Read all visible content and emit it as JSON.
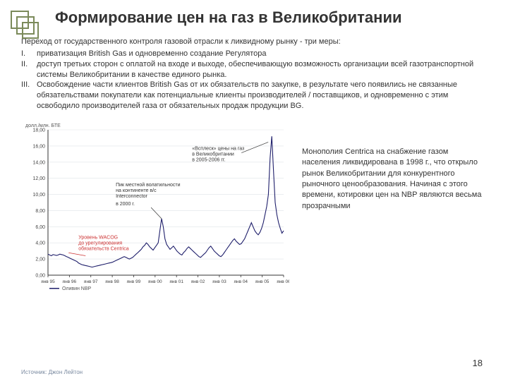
{
  "title": "Формирование цен на газ в Великобритании",
  "lead": "Переход от государственного контроля газовой отрасли к ликвидному рынку - три меры:",
  "items": [
    {
      "num": "I.",
      "text": "приватизация British Gas и одновременно создание Регулятора"
    },
    {
      "num": "II.",
      "text": "доступ третьих сторон с оплатой на входе и выходе, обеспечивающую возможность организации всей газотранспортной системы Великобритании в качестве единого рынка."
    },
    {
      "num": "III.",
      "text": "Освобождение части клиентов British Gas от их обязательств по закупке, в результате чего появились не связанные обязательствами покупатели как потенциальные клиенты производителей / поставщиков, и одновременно с этим освободило производителей газа от обязательных продаж продукции BG."
    }
  ],
  "sideText": "Монополия Centrica на снабжение газом населения ликвидирована в 1998 г., что открыло рынок Великобритании для конкурентного рыночного ценообразования. Начиная с этого времени, котировки цен на NBP являются весьма прозрачными",
  "pageNum": "18",
  "source": "Источник: Джон Лейтон",
  "chart": {
    "yAxisLabel": "долл./млн. БТЕ",
    "ylim": [
      0,
      18
    ],
    "ytick_step": 2,
    "yticks": [
      "0,00",
      "2,00",
      "4,00",
      "6,00",
      "8,00",
      "10,00",
      "12,00",
      "14,00",
      "16,00",
      "18,00"
    ],
    "xticks": [
      "янв 95",
      "янв 96",
      "янв 97",
      "янв 98",
      "янв 99",
      "янв 00",
      "янв 01",
      "янв 02",
      "янв 03",
      "янв 04",
      "янв 05",
      "янв 06"
    ],
    "legend": "Оливин NBP",
    "line_color": "#1f1f6b",
    "line_width": 1.1,
    "grid_color": "#dfe3e8",
    "ann_red": "Уровень WACOG до урегулирования обязательств Centrica",
    "ann_d1": "Пик местной волатильности на континенте в/с Interconnector",
    "ann_d1_sub": "в 2000 г.",
    "ann_d2": "«Всплеск» цены на газ в Великобритании в 2005-2006 гг.",
    "values": [
      2.6,
      2.5,
      2.4,
      2.55,
      2.5,
      2.45,
      2.5,
      2.6,
      2.55,
      2.5,
      2.4,
      2.3,
      2.2,
      2.1,
      2.0,
      1.9,
      1.8,
      1.7,
      1.5,
      1.4,
      1.3,
      1.25,
      1.2,
      1.15,
      1.1,
      1.05,
      1.0,
      1.05,
      1.1,
      1.15,
      1.2,
      1.25,
      1.3,
      1.35,
      1.4,
      1.45,
      1.5,
      1.55,
      1.6,
      1.7,
      1.8,
      1.9,
      2.0,
      2.1,
      2.2,
      2.3,
      2.2,
      2.1,
      2.0,
      2.1,
      2.2,
      2.4,
      2.6,
      2.8,
      3.0,
      3.2,
      3.5,
      3.7,
      4.0,
      3.8,
      3.5,
      3.3,
      3.1,
      3.4,
      3.7,
      4.0,
      5.5,
      7.0,
      6.0,
      4.5,
      3.8,
      3.5,
      3.2,
      3.4,
      3.6,
      3.3,
      3.0,
      2.8,
      2.6,
      2.5,
      2.8,
      3.0,
      3.3,
      3.5,
      3.3,
      3.1,
      2.9,
      2.7,
      2.5,
      2.3,
      2.2,
      2.4,
      2.6,
      2.8,
      3.1,
      3.4,
      3.6,
      3.3,
      3.0,
      2.8,
      2.6,
      2.4,
      2.3,
      2.5,
      2.8,
      3.1,
      3.4,
      3.7,
      4.0,
      4.3,
      4.5,
      4.2,
      4.0,
      3.8,
      3.9,
      4.2,
      4.5,
      5.0,
      5.5,
      6.0,
      6.5,
      6.0,
      5.5,
      5.2,
      5.0,
      5.3,
      5.8,
      6.5,
      7.5,
      8.5,
      10.0,
      14.5,
      17.2,
      13.0,
      9.0,
      7.5,
      6.5,
      5.8,
      5.2,
      5.5
    ]
  },
  "logo": {
    "stroke": "#7b8a5a",
    "stroke_width": 2
  }
}
